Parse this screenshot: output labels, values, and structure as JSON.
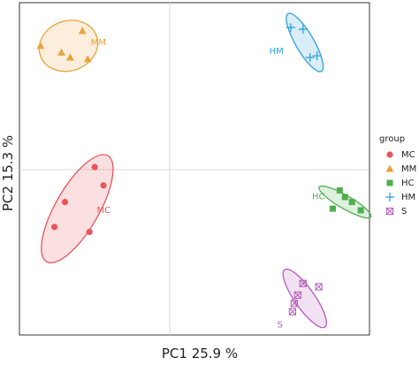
{
  "chart_data": {
    "type": "scatter",
    "xlabel": "PC1 25.9 %",
    "ylabel": "PC2 15.3 %",
    "xlim": [
      -1.0,
      1.0
    ],
    "ylim": [
      -1.0,
      1.0
    ],
    "grid": "zero lines",
    "legend": {
      "title": "group",
      "placement": "right"
    },
    "series": [
      {
        "name": "MC",
        "color": "#e8555a",
        "marker": "circle",
        "label": "MC",
        "points": [
          [
            -0.52,
            -0.1
          ],
          [
            -0.74,
            -0.2
          ],
          [
            -0.6,
            -0.38
          ],
          [
            -0.8,
            -0.35
          ],
          [
            -0.57,
            0.01
          ]
        ],
        "ellipse": {
          "cx": -0.67,
          "cy": -0.24,
          "rx": 0.35,
          "ry": 0.13,
          "angle_deg": -60
        }
      },
      {
        "name": "MM",
        "color": "#e8a33d",
        "marker": "triangle",
        "label": "MM",
        "points": [
          [
            -0.76,
            0.7
          ],
          [
            -0.64,
            0.83
          ],
          [
            -0.88,
            0.74
          ],
          [
            -0.71,
            0.67
          ],
          [
            -0.61,
            0.66
          ]
        ],
        "ellipse": {
          "cx": -0.72,
          "cy": 0.74,
          "rx": 0.17,
          "ry": 0.15,
          "angle_deg": -20
        }
      },
      {
        "name": "HC",
        "color": "#4fae4e",
        "marker": "square",
        "label": "HC",
        "points": [
          [
            0.83,
            -0.13
          ],
          [
            0.86,
            -0.17
          ],
          [
            0.79,
            -0.24
          ],
          [
            0.95,
            -0.25
          ],
          [
            0.9,
            -0.2
          ]
        ],
        "ellipse": {
          "cx": 0.86,
          "cy": -0.2,
          "rx": 0.17,
          "ry": 0.04,
          "angle_deg": 30
        }
      },
      {
        "name": "HM",
        "color": "#2e9fdc",
        "marker": "plus",
        "label": "HM",
        "points": [
          [
            0.55,
            0.85
          ],
          [
            0.62,
            0.84
          ],
          [
            0.66,
            0.67
          ],
          [
            0.7,
            0.68
          ]
        ],
        "ellipse": {
          "cx": 0.63,
          "cy": 0.76,
          "rx": 0.19,
          "ry": 0.055,
          "angle_deg": 60
        }
      },
      {
        "name": "S",
        "color": "#b35ab8",
        "marker": "boxed-x",
        "label": "S",
        "points": [
          [
            0.62,
            -0.69
          ],
          [
            0.71,
            -0.71
          ],
          [
            0.59,
            -0.76
          ],
          [
            0.56,
            -0.86
          ],
          [
            0.57,
            -0.81
          ]
        ],
        "ellipse": {
          "cx": 0.63,
          "cy": -0.78,
          "rx": 0.2,
          "ry": 0.06,
          "angle_deg": 55
        }
      }
    ]
  }
}
